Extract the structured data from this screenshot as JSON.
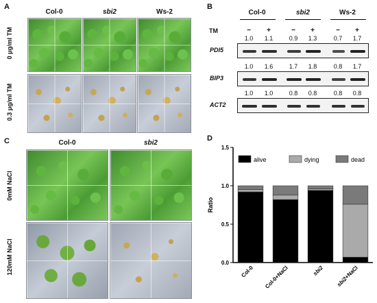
{
  "panelA": {
    "label": "A",
    "columns": [
      "Col-0",
      "sbi2",
      "Ws-2"
    ],
    "rows": [
      "0 μg/ml TM",
      "0.3 μg/ml TM"
    ]
  },
  "panelB": {
    "label": "B",
    "columns": [
      "Col-0",
      "sbi2",
      "Ws-2"
    ],
    "tm_label": "TM",
    "signs": [
      "−",
      "+",
      "−",
      "+",
      "−",
      "+"
    ],
    "blots": [
      {
        "gene": "PDI5",
        "values": [
          "1.0",
          "1.1",
          "0.9",
          "1.3",
          "0.7",
          "1.7"
        ]
      },
      {
        "gene": "BIP3",
        "values": [
          "1.0",
          "1.6",
          "1.7",
          "1.8",
          "0.8",
          "1.7"
        ]
      },
      {
        "gene": "ACT2",
        "values": [
          "1.0",
          "1.0",
          "0.8",
          "0.8",
          "0.8",
          "0.8"
        ]
      }
    ]
  },
  "panelC": {
    "label": "C",
    "columns": [
      "Col-0",
      "sbi2"
    ],
    "rows": [
      "0mM NaCl",
      "120mM NaCl"
    ]
  },
  "panelD": {
    "label": "D",
    "colors": {
      "alive": "#000000",
      "dying": "#aaaaaa",
      "dead": "#7a7a7a"
    }
  },
  "chart_data": {
    "type": "bar",
    "stacked": true,
    "categories": [
      "Col-0",
      "Col-0+NaCl",
      "sbi2",
      "sbi2+NaCl"
    ],
    "series": [
      {
        "name": "alive",
        "values": [
          0.92,
          0.82,
          0.94,
          0.07
        ]
      },
      {
        "name": "dying",
        "values": [
          0.03,
          0.06,
          0.02,
          0.69
        ]
      },
      {
        "name": "dead",
        "values": [
          0.05,
          0.12,
          0.04,
          0.24
        ]
      }
    ],
    "ylabel": "Ratio",
    "ylim": [
      0,
      1.5
    ],
    "yticks": [
      "0.0",
      "0.5",
      "1.0",
      "1.5"
    ],
    "legend": "top"
  }
}
